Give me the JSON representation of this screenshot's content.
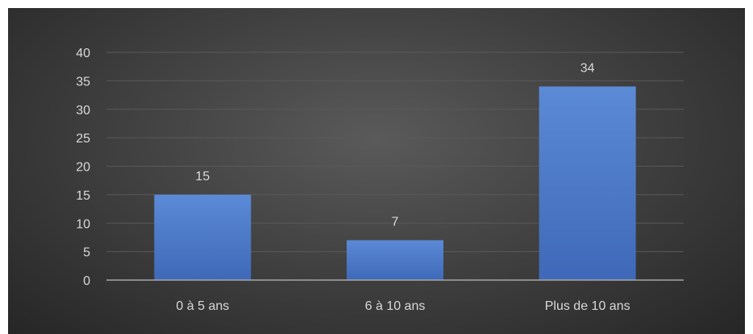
{
  "chart_data": {
    "type": "bar",
    "title": "",
    "xlabel": "",
    "ylabel": "",
    "categories": [
      "0 à 5 ans",
      "6 à 10 ans",
      "Plus de 10 ans"
    ],
    "values": [
      15,
      7,
      34
    ],
    "data_labels": [
      "15",
      "7",
      "34"
    ],
    "ylim": [
      0,
      40
    ],
    "yticks": [
      0,
      5,
      10,
      15,
      20,
      25,
      30,
      35,
      40
    ],
    "ytick_labels": [
      "0",
      "5",
      "10",
      "15",
      "20",
      "25",
      "30",
      "35",
      "40"
    ],
    "grid": true,
    "legend": "none",
    "colors": {
      "bar": "#4472c4",
      "bar_light": "#5b8ad6",
      "text": "#d9d9d9",
      "grid": "#595959",
      "axis": "#a6a6a6"
    }
  }
}
